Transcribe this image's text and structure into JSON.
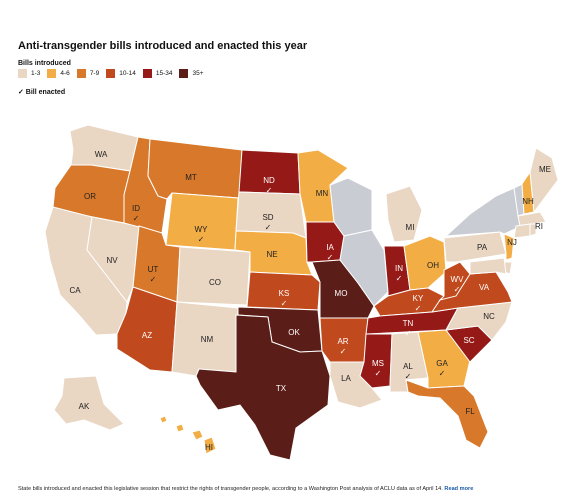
{
  "title": "Anti-transgender bills introduced and enacted this year",
  "legend": {
    "heading": "Bills introduced",
    "bins": [
      {
        "label": "1-3",
        "color": "#e9d6c3"
      },
      {
        "label": "4-6",
        "color": "#f3ad45"
      },
      {
        "label": "7-9",
        "color": "#d8782a"
      },
      {
        "label": "10-14",
        "color": "#c04a1d"
      },
      {
        "label": "15-34",
        "color": "#951a17"
      },
      {
        "label": "35+",
        "color": "#5a1d17"
      }
    ],
    "enacted_label": "✓ Bill enacted",
    "no_data_color": "#c9cdd3"
  },
  "footer": {
    "text": "State bills introduced and enacted this legislative session that restrict the rights of transgender people, according to a Washington Post analysis of ACLU data as of April 14.",
    "link": "Read more"
  },
  "states": {
    "WA": {
      "bin": "1-3",
      "enacted": false
    },
    "OR": {
      "bin": "7-9",
      "enacted": false
    },
    "CA": {
      "bin": "1-3",
      "enacted": false
    },
    "NV": {
      "bin": "1-3",
      "enacted": false
    },
    "ID": {
      "bin": "7-9",
      "enacted": true
    },
    "MT": {
      "bin": "7-9",
      "enacted": false
    },
    "WY": {
      "bin": "4-6",
      "enacted": true
    },
    "UT": {
      "bin": "7-9",
      "enacted": true
    },
    "AZ": {
      "bin": "10-14",
      "enacted": false
    },
    "CO": {
      "bin": "1-3",
      "enacted": false
    },
    "NM": {
      "bin": "1-3",
      "enacted": false
    },
    "ND": {
      "bin": "15-34",
      "enacted": true
    },
    "SD": {
      "bin": "1-3",
      "enacted": true
    },
    "NE": {
      "bin": "4-6",
      "enacted": false
    },
    "KS": {
      "bin": "10-14",
      "enacted": true
    },
    "OK": {
      "bin": "35+",
      "enacted": false
    },
    "TX": {
      "bin": "35+",
      "enacted": false
    },
    "MN": {
      "bin": "4-6",
      "enacted": false
    },
    "IA": {
      "bin": "15-34",
      "enacted": true
    },
    "MO": {
      "bin": "35+",
      "enacted": false
    },
    "AR": {
      "bin": "10-14",
      "enacted": true
    },
    "LA": {
      "bin": "1-3",
      "enacted": false
    },
    "WI": {
      "bin": "none",
      "enacted": false
    },
    "IL": {
      "bin": "none",
      "enacted": false
    },
    "MI": {
      "bin": "1-3",
      "enacted": false
    },
    "IN": {
      "bin": "15-34",
      "enacted": true
    },
    "OH": {
      "bin": "4-6",
      "enacted": false
    },
    "KY": {
      "bin": "10-14",
      "enacted": true
    },
    "TN": {
      "bin": "15-34",
      "enacted": true
    },
    "MS": {
      "bin": "15-34",
      "enacted": true
    },
    "AL": {
      "bin": "1-3",
      "enacted": true
    },
    "GA": {
      "bin": "4-6",
      "enacted": true
    },
    "FL": {
      "bin": "7-9",
      "enacted": false
    },
    "SC": {
      "bin": "15-34",
      "enacted": false
    },
    "NC": {
      "bin": "1-3",
      "enacted": false
    },
    "VA": {
      "bin": "10-14",
      "enacted": false
    },
    "WV": {
      "bin": "10-14",
      "enacted": true
    },
    "PA": {
      "bin": "1-3",
      "enacted": false
    },
    "NY": {
      "bin": "none",
      "enacted": false
    },
    "NJ": {
      "bin": "4-6",
      "enacted": false
    },
    "NH": {
      "bin": "4-6",
      "enacted": false
    },
    "VT": {
      "bin": "none",
      "enacted": false
    },
    "ME": {
      "bin": "1-3",
      "enacted": false
    },
    "MA": {
      "bin": "1-3",
      "enacted": false
    },
    "RI": {
      "bin": "1-3",
      "enacted": false
    },
    "CT": {
      "bin": "1-3",
      "enacted": false
    },
    "DE": {
      "bin": "1-3",
      "enacted": false
    },
    "MD": {
      "bin": "1-3",
      "enacted": false
    },
    "AK": {
      "bin": "1-3",
      "enacted": false
    },
    "HI": {
      "bin": "4-6",
      "enacted": false
    }
  }
}
